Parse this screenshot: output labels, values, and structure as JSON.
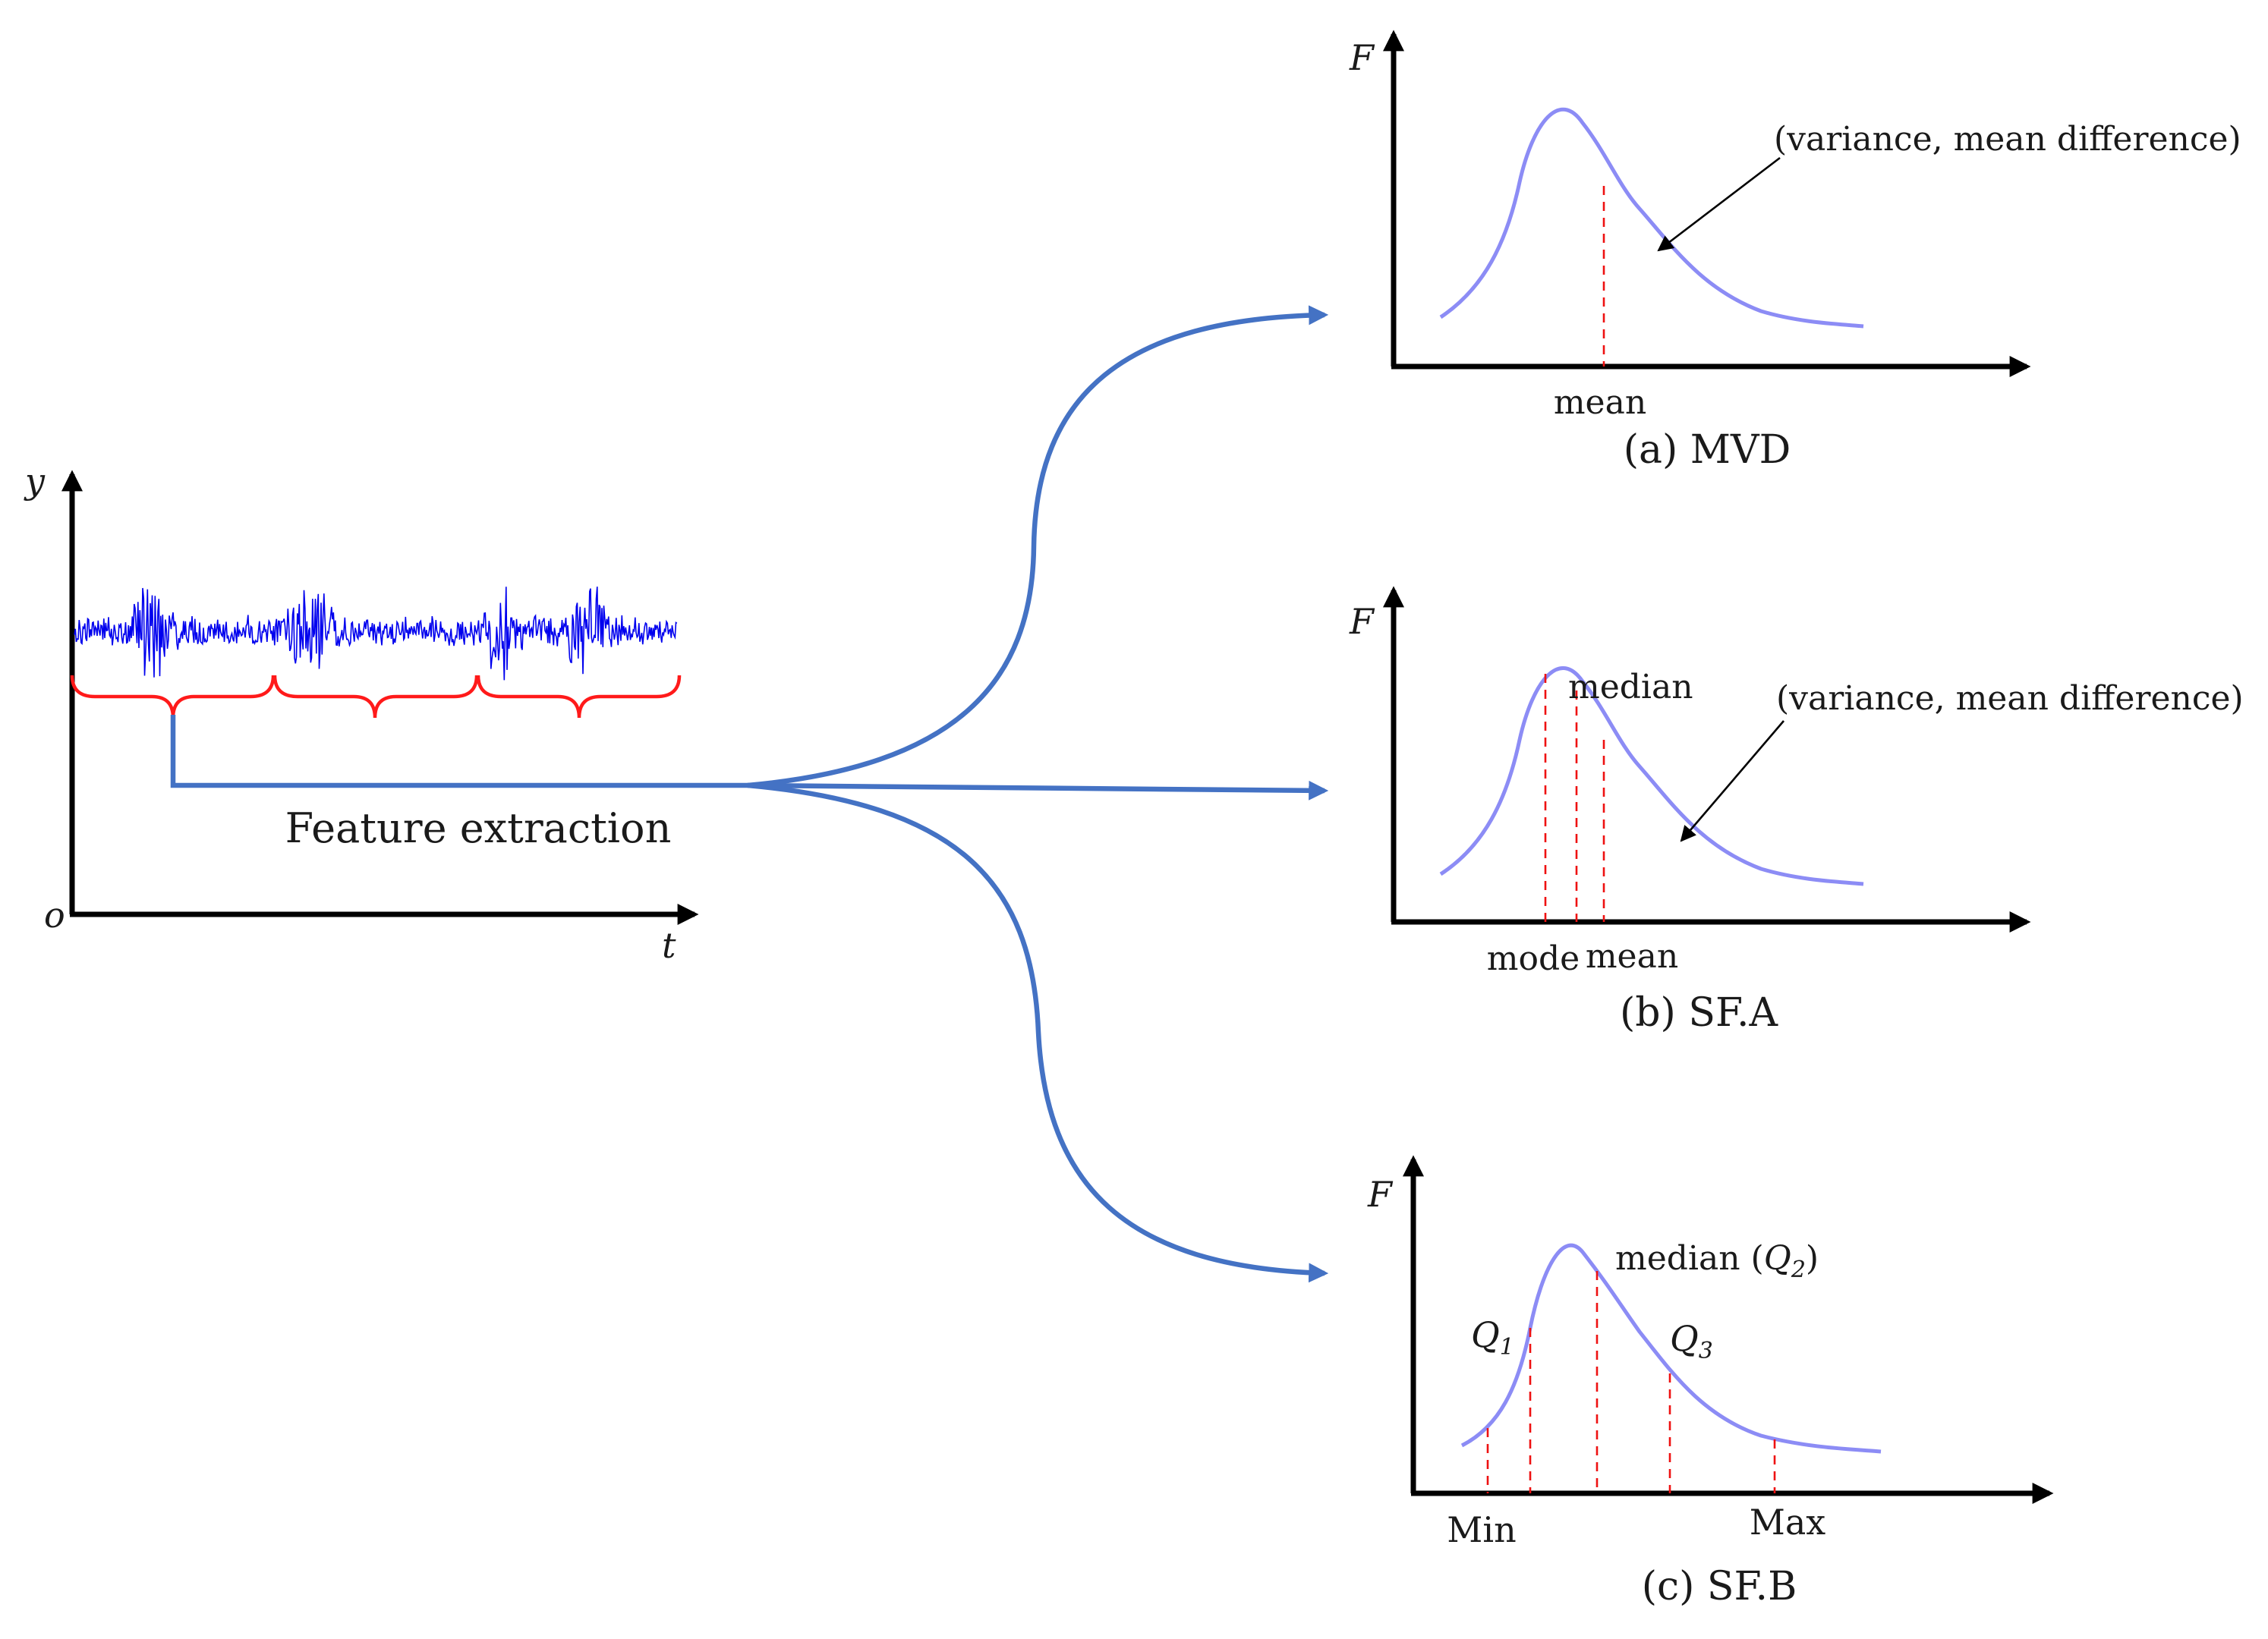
{
  "time_series": {
    "y_label": "y",
    "x_label": "t",
    "origin_label": "o",
    "feature_label": "Feature extraction"
  },
  "panels": [
    {
      "id": "mvd",
      "caption": "(a) MVD",
      "y_label": "F",
      "annotation": "(variance, mean difference)",
      "labels": [
        "mean"
      ]
    },
    {
      "id": "sfa",
      "caption": "(b) SF.A",
      "y_label": "F",
      "annotation": "(variance, mean difference)",
      "labels": [
        "median",
        "mode",
        "mean"
      ]
    },
    {
      "id": "sfb",
      "caption": "(c) SF.B",
      "y_label": "F",
      "q1_main": "Q",
      "q1_sub": "1",
      "q3_main": "Q",
      "q3_sub": "3",
      "median_prefix": "median (",
      "q2_main": "Q",
      "q2_sub": "2",
      "median_suffix": ")",
      "labels": [
        "Min",
        "Max"
      ]
    }
  ],
  "colors": {
    "signal": "#0000ee",
    "brace": "#ff1a1a",
    "flow_arrows": "#4472c4",
    "distribution_curve": "#8c8cf5",
    "guide_lines": "#ee1111"
  }
}
